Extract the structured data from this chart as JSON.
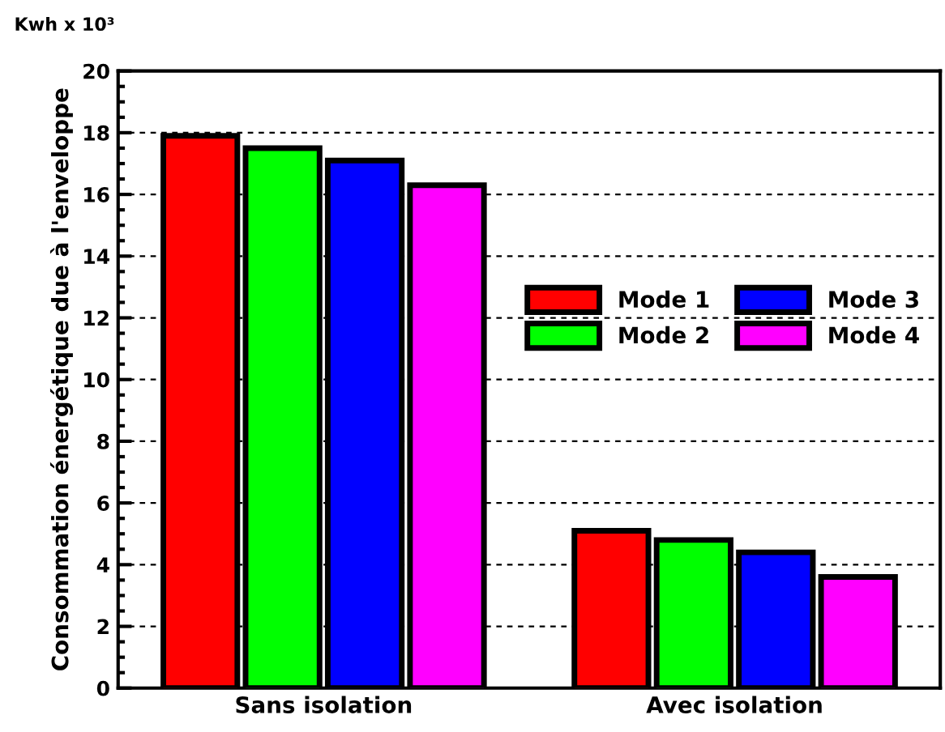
{
  "chart_data": {
    "type": "bar",
    "ylabel": "Consommation énergétique due à l'enveloppe",
    "annotations": [
      "Kwh x 10³"
    ],
    "categories": [
      "Sans isolation",
      "Avec isolation"
    ],
    "series": [
      {
        "name": "Mode 1",
        "color": "#ff0000",
        "values": [
          17.9,
          5.1
        ]
      },
      {
        "name": "Mode 2",
        "color": "#00ff00",
        "values": [
          17.5,
          4.8
        ]
      },
      {
        "name": "Mode 3",
        "color": "#0000ff",
        "values": [
          17.1,
          4.4
        ]
      },
      {
        "name": "Mode 4",
        "color": "#ff00ff",
        "values": [
          16.3,
          3.6
        ]
      }
    ],
    "ylim": [
      0,
      20
    ],
    "yticks": [
      0,
      2,
      4,
      6,
      8,
      10,
      12,
      14,
      16,
      18,
      20
    ],
    "grid": "y",
    "legend": "right"
  }
}
